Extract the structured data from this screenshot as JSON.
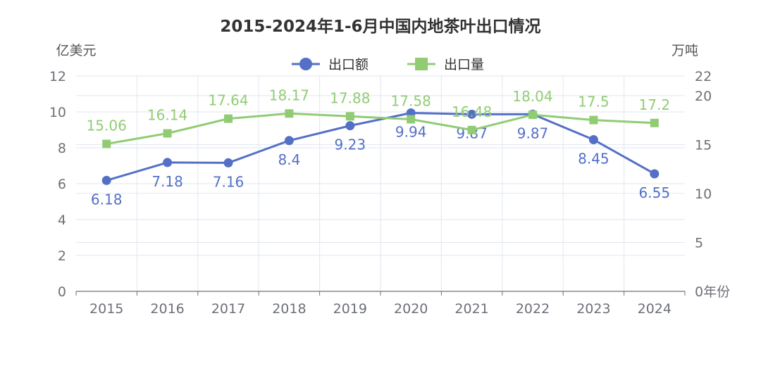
{
  "chart_data": {
    "type": "line",
    "title": "2015-2024年1-6月中国内地茶叶出口情况",
    "categories": [
      "2015",
      "2016",
      "2017",
      "2018",
      "2019",
      "2020",
      "2021",
      "2022",
      "2023",
      "2024"
    ],
    "y_left": {
      "label": "亿美元",
      "ylim": [
        0,
        12
      ],
      "ticks": [
        "0",
        "2",
        "4",
        "6",
        "8",
        "10",
        "12"
      ]
    },
    "y_right": {
      "label": "万吨",
      "ylim": [
        0,
        22
      ],
      "ticks": [
        "0",
        "5",
        "10",
        "15",
        "20",
        "22"
      ],
      "suffix_label": "年份"
    },
    "grid": true,
    "legend_position": "top-center",
    "series": [
      {
        "name": "出口额",
        "axis": "left",
        "color": "#5470c6",
        "marker": "circle",
        "values": [
          6.18,
          7.18,
          7.16,
          8.4,
          9.23,
          9.94,
          9.87,
          9.87,
          8.45,
          6.55
        ],
        "labels": [
          "6.18",
          "7.18",
          "7.16",
          "8.4",
          "9.23",
          "9.94",
          "9.87",
          "9.87",
          "8.45",
          "6.55"
        ]
      },
      {
        "name": "出口量",
        "axis": "right",
        "color": "#91cc75",
        "marker": "square",
        "values": [
          15.06,
          16.14,
          17.64,
          18.17,
          17.88,
          17.58,
          16.48,
          18.04,
          17.5,
          17.2
        ],
        "labels": [
          "15.06",
          "16.14",
          "17.64",
          "18.17",
          "17.88",
          "17.58",
          "16.48",
          "18.04",
          "17.5",
          "17.2"
        ]
      }
    ]
  }
}
